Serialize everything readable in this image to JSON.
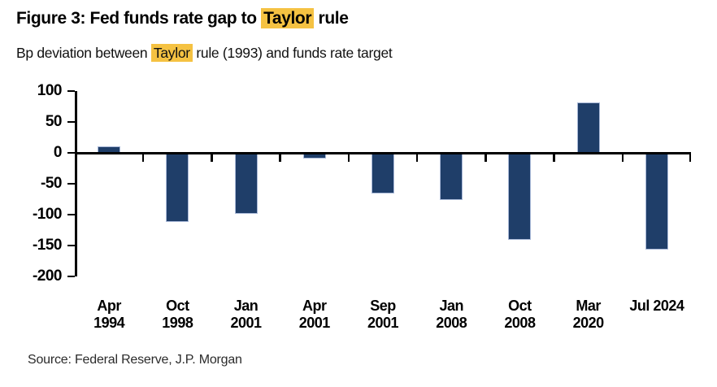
{
  "header": {
    "title_parts": [
      {
        "text": "Figure 3: Fed funds rate gap to ",
        "highlight": false
      },
      {
        "text": "Taylor",
        "highlight": true
      },
      {
        "text": " rule",
        "highlight": false
      }
    ],
    "subtitle_parts": [
      {
        "text": "Bp deviation between ",
        "highlight": false
      },
      {
        "text": "Taylor",
        "highlight": true
      },
      {
        "text": " rule (1993) and funds rate target",
        "highlight": false
      }
    ]
  },
  "chart_data": {
    "type": "bar",
    "title": "Figure 3: Fed funds rate gap to Taylor rule",
    "subtitle": "Bp deviation between Taylor rule (1993) and funds rate target",
    "categories": [
      "Apr 1994",
      "Oct 1998",
      "Jan 2001",
      "Apr 2001",
      "Sep 2001",
      "Jan 2008",
      "Oct 2008",
      "Mar 2020",
      "Jul 2024"
    ],
    "category_label_lines": [
      [
        "Apr",
        "1994"
      ],
      [
        "Oct",
        "1998"
      ],
      [
        "Jan",
        "2001"
      ],
      [
        "Apr",
        "2001"
      ],
      [
        "Sep",
        "2001"
      ],
      [
        "Jan",
        "2008"
      ],
      [
        "Oct",
        "2008"
      ],
      [
        "Mar",
        "2020"
      ],
      [
        "Jul 2024"
      ]
    ],
    "values": [
      10,
      -110,
      -97,
      -8,
      -64,
      -75,
      -140,
      82,
      -155
    ],
    "unit": "bp",
    "xlabel": "",
    "ylabel": "",
    "ylim": [
      -200,
      100
    ],
    "yticks": [
      100,
      50,
      0,
      -50,
      -100,
      -150,
      -200
    ],
    "grid": false,
    "legend": false,
    "bar_color": "#1f3e69",
    "bar_border_color": "#a9b9d8",
    "highlight_color": "#f5c242",
    "axis_color": "#000000"
  },
  "footer": {
    "source": "Source: Federal Reserve, J.P. Morgan"
  }
}
